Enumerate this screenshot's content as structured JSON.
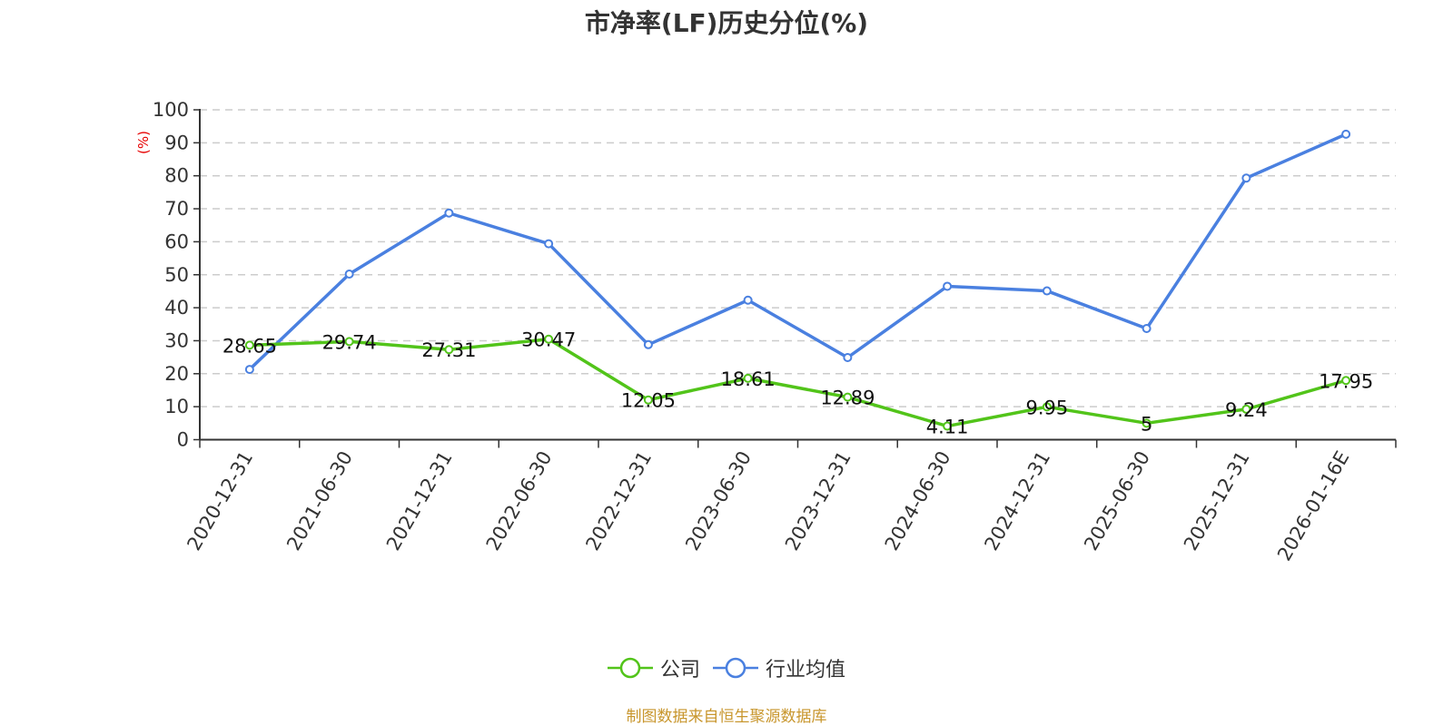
{
  "title": "市净率(LF)历史分位(%)",
  "footnote": "制图数据来自恒生聚源数据库",
  "colors": {
    "company": "#52c41a",
    "industry": "#4a80e0",
    "ylabel": "#e60000",
    "footnote": "#c8962d"
  },
  "legend": [
    {
      "label": "公司",
      "color": "#52c41a"
    },
    {
      "label": "行业均值",
      "color": "#4a80e0"
    }
  ],
  "chart_data": {
    "type": "line",
    "title": "市净率(LF)历史分位(%)",
    "xlabel": "",
    "ylabel": "(%)",
    "ylim": [
      0,
      100
    ],
    "yticks": [
      0,
      10,
      20,
      30,
      40,
      50,
      60,
      70,
      80,
      90,
      100
    ],
    "grid": true,
    "legend_position": "bottom",
    "categories": [
      "2020-12-31",
      "2021-06-30",
      "2021-12-31",
      "2022-06-30",
      "2022-12-31",
      "2023-06-30",
      "2023-12-31",
      "2024-06-30",
      "2024-12-31",
      "2025-06-30",
      "2025-12-31",
      "2026-01-16E"
    ],
    "series": [
      {
        "name": "公司",
        "values": [
          28.65,
          29.74,
          27.31,
          30.47,
          12.05,
          18.61,
          12.89,
          4.11,
          9.95,
          5,
          9.24,
          17.95
        ],
        "labeled": true
      },
      {
        "name": "行业均值",
        "values": [
          21.3,
          50.2,
          68.7,
          59.4,
          28.8,
          42.3,
          24.9,
          46.5,
          45.1,
          33.7,
          79.3,
          92.6
        ],
        "labeled": false
      }
    ]
  }
}
